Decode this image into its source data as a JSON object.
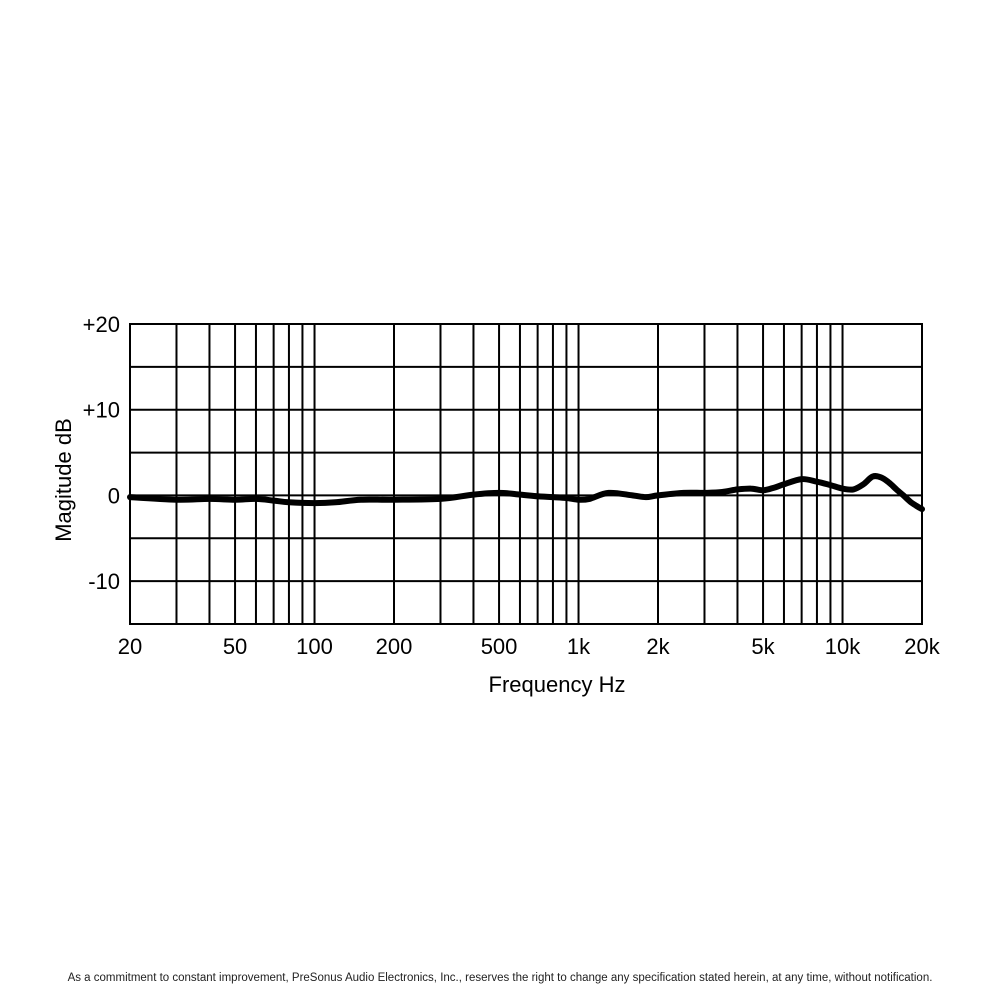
{
  "chart_data": {
    "type": "line",
    "x_scale": "log",
    "y_scale": "linear",
    "xlabel": "Frequency Hz",
    "ylabel": "Magitude dB",
    "xlim": [
      20,
      20000
    ],
    "ylim": [
      -15,
      20
    ],
    "grid": true,
    "x_tick_labels": [
      {
        "value": 20,
        "label": "20"
      },
      {
        "value": 50,
        "label": "50"
      },
      {
        "value": 100,
        "label": "100"
      },
      {
        "value": 200,
        "label": "200"
      },
      {
        "value": 500,
        "label": "500"
      },
      {
        "value": 1000,
        "label": "1k"
      },
      {
        "value": 2000,
        "label": "2k"
      },
      {
        "value": 5000,
        "label": "5k"
      },
      {
        "value": 10000,
        "label": "10k"
      },
      {
        "value": 20000,
        "label": "20k"
      }
    ],
    "y_tick_labels": [
      {
        "value": 20,
        "label": "+20"
      },
      {
        "value": 10,
        "label": "+10"
      },
      {
        "value": 0,
        "label": "0"
      },
      {
        "value": -10,
        "label": "-10"
      }
    ],
    "x_grid_values": [
      20,
      30,
      40,
      50,
      60,
      70,
      80,
      90,
      100,
      200,
      300,
      400,
      500,
      600,
      700,
      800,
      900,
      1000,
      2000,
      3000,
      4000,
      5000,
      6000,
      7000,
      8000,
      9000,
      10000,
      20000
    ],
    "y_grid_values": [
      20,
      15,
      10,
      5,
      0,
      -5,
      -10,
      -15
    ],
    "series": [
      {
        "color": "#000000",
        "x": [
          20,
          30,
          40,
          50,
          60,
          70,
          80,
          100,
          120,
          150,
          200,
          300,
          400,
          500,
          600,
          700,
          800,
          900,
          1000,
          1100,
          1300,
          1600,
          1800,
          2000,
          2500,
          3000,
          3500,
          4000,
          4500,
          5000,
          5500,
          6000,
          7000,
          8000,
          9000,
          10000,
          11000,
          12000,
          13000,
          14000,
          15000,
          16000,
          17000,
          18000,
          19000,
          20000
        ],
        "y": [
          -0.2,
          -0.5,
          -0.4,
          -0.5,
          -0.4,
          -0.6,
          -0.8,
          -0.9,
          -0.8,
          -0.5,
          -0.5,
          -0.4,
          0.1,
          0.3,
          0.1,
          -0.1,
          -0.2,
          -0.3,
          -0.5,
          -0.4,
          0.3,
          0.0,
          -0.2,
          0.0,
          0.3,
          0.3,
          0.4,
          0.7,
          0.8,
          0.6,
          0.9,
          1.3,
          1.9,
          1.6,
          1.2,
          0.8,
          0.7,
          1.3,
          2.2,
          2.1,
          1.5,
          0.7,
          0.0,
          -0.7,
          -1.2,
          -1.6
        ]
      }
    ]
  },
  "footer": {
    "disclaimer": "As a commitment to constant improvement, PreSonus Audio Electronics, Inc., reserves the right to change any specification stated herein, at any time, without notification."
  }
}
